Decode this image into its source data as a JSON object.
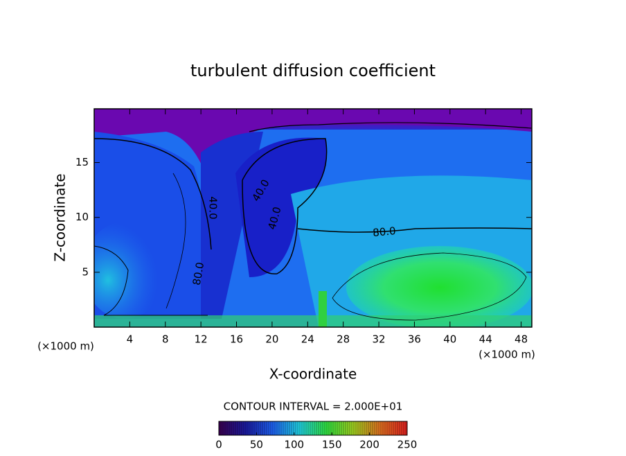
{
  "chart_data": {
    "type": "contour",
    "title": "turbulent diffusion coefficient",
    "x_label": "X-coordinate",
    "y_label": "Z-coordinate",
    "x_unit": "(×1000 m)",
    "xlim": [
      0,
      49.2
    ],
    "xticks": [
      4,
      8,
      12,
      16,
      20,
      24,
      28,
      32,
      36,
      40,
      44,
      48
    ],
    "ylim": [
      0,
      19.9
    ],
    "yticks": [
      5,
      10,
      15
    ],
    "contour_interval_label": "CONTOUR INTERVAL = 2.000E+01",
    "contour_labels": [
      "80.0",
      "40.0",
      "40.0",
      "80.0",
      "40.0"
    ],
    "colorbar": {
      "lim": [
        0,
        250
      ],
      "ticks": [
        0,
        50,
        100,
        150,
        200,
        250
      ],
      "colors": [
        "#3a0050",
        "#1a1aa0",
        "#1e60f0",
        "#20d0e0",
        "#30e040",
        "#a0d020",
        "#e07020",
        "#e02020"
      ]
    }
  }
}
